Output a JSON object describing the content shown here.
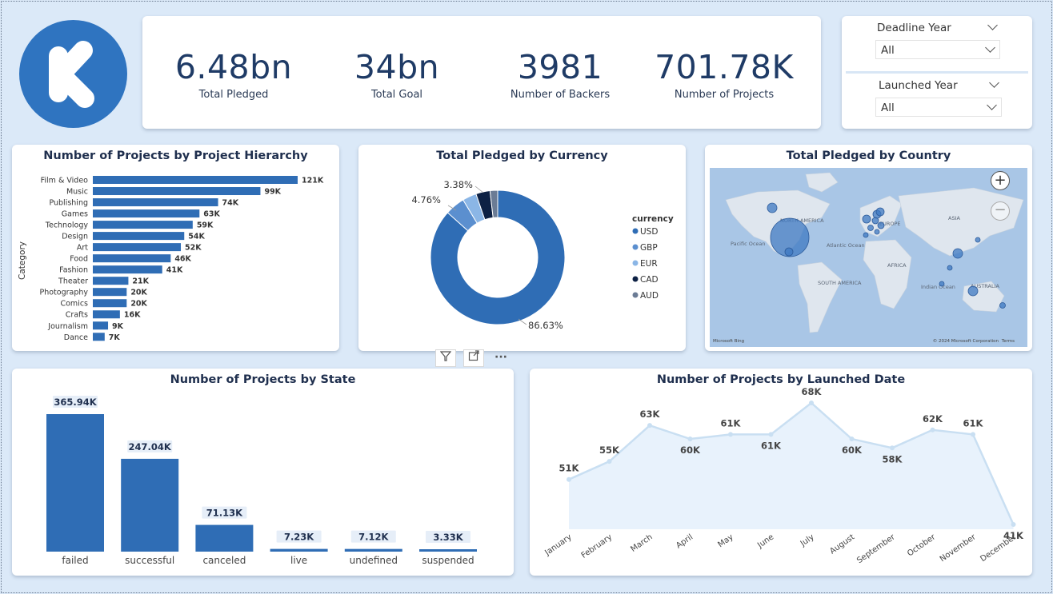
{
  "logo": {
    "letter": "K",
    "color": "#2f74c0"
  },
  "kpis": [
    {
      "value": "6.48bn",
      "label": "Total Pledged"
    },
    {
      "value": "34bn",
      "label": "Total Goal"
    },
    {
      "value": "3981",
      "label": "Number of Backers"
    },
    {
      "value": "701.78K",
      "label": "Number of Projects"
    }
  ],
  "slicers": {
    "deadline": {
      "title": "Deadline Year",
      "value": "All"
    },
    "launched": {
      "title": "Launched Year",
      "value": "All"
    }
  },
  "colors": {
    "primary": "#2f6db5",
    "accent": "#1f3b66",
    "area": "#e8f2fc",
    "line": "#c9dff2"
  },
  "chart_data": [
    {
      "type": "bar",
      "orientation": "horizontal",
      "title": "Number of Projects by Project Hierarchy",
      "ylabel": "Category",
      "categories": [
        "Film & Video",
        "Music",
        "Publishing",
        "Games",
        "Technology",
        "Design",
        "Art",
        "Food",
        "Fashion",
        "Theater",
        "Photography",
        "Comics",
        "Crafts",
        "Journalism",
        "Dance"
      ],
      "values": [
        121,
        99,
        74,
        63,
        59,
        54,
        52,
        46,
        41,
        21,
        20,
        20,
        16,
        9,
        7
      ],
      "labels": [
        "121K",
        "99K",
        "74K",
        "63K",
        "59K",
        "54K",
        "52K",
        "46K",
        "41K",
        "21K",
        "20K",
        "20K",
        "16K",
        "9K",
        "7K"
      ]
    },
    {
      "type": "pie",
      "variant": "donut",
      "title": "Total Pledged by Currency",
      "legend_title": "currency",
      "legend_position": "right",
      "categories": [
        "USD",
        "GBP",
        "EUR",
        "CAD",
        "AUD"
      ],
      "values": [
        86.63,
        4.76,
        3.38,
        3.4,
        1.83
      ],
      "colors": [
        "#2f6db5",
        "#5b8fcf",
        "#8bb6e6",
        "#0d2144",
        "#6b7c95"
      ],
      "shown_labels": [
        {
          "category": "USD",
          "text": "86.63%"
        },
        {
          "category": "GBP",
          "text": "4.76%"
        },
        {
          "category": "EUR",
          "text": "3.38%"
        }
      ]
    },
    {
      "type": "map",
      "title": "Total Pledged by Country",
      "regions": [
        "NORTH AMERICA",
        "EUROPE",
        "ASIA",
        "AFRICA",
        "SOUTH AMERICA",
        "Pacific Ocean",
        "Atlantic Ocean",
        "Indian Ocean",
        "AUSTRALIA"
      ],
      "footer": [
        "Microsoft Bing",
        "© 2024 Microsoft Corporation",
        "Terms"
      ]
    },
    {
      "type": "bar",
      "title": "Number of Projects by State",
      "categories": [
        "failed",
        "successful",
        "canceled",
        "live",
        "undefined",
        "suspended"
      ],
      "values": [
        365.94,
        247.04,
        71.13,
        7.23,
        7.12,
        3.33
      ],
      "labels": [
        "365.94K",
        "247.04K",
        "71.13K",
        "7.23K",
        "7.12K",
        "3.33K"
      ]
    },
    {
      "type": "area",
      "title": "Number of Projects by Launched Date",
      "categories": [
        "January",
        "February",
        "March",
        "April",
        "May",
        "June",
        "July",
        "August",
        "September",
        "October",
        "November",
        "December"
      ],
      "values": [
        51,
        55,
        63,
        60,
        61,
        61,
        68,
        60,
        58,
        62,
        61,
        41
      ],
      "labels": [
        "51K",
        "55K",
        "63K",
        "60K",
        "61K",
        "61K",
        "68K",
        "60K",
        "58K",
        "62K",
        "61K",
        "41K"
      ]
    }
  ]
}
